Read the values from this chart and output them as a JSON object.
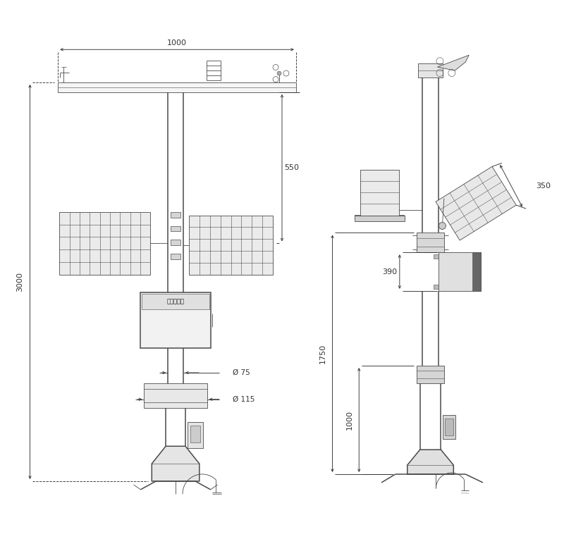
{
  "bg_color": "#ffffff",
  "line_color": "#4a4a4a",
  "dim_color": "#333333",
  "text_color": "#333333",
  "lw_main": 1.1,
  "lw_thin": 0.6,
  "lw_dim": 0.65,
  "fig_width": 8.0,
  "fig_height": 7.82,
  "labels": {
    "dim_1000": "1000",
    "dim_550": "550",
    "dim_3000": "3000",
    "dim_75": "Ø 75",
    "dim_115": "Ø 115",
    "dim_350": "350",
    "dim_390": "390",
    "dim_1750": "1750",
    "dim_1000r": "1000"
  }
}
